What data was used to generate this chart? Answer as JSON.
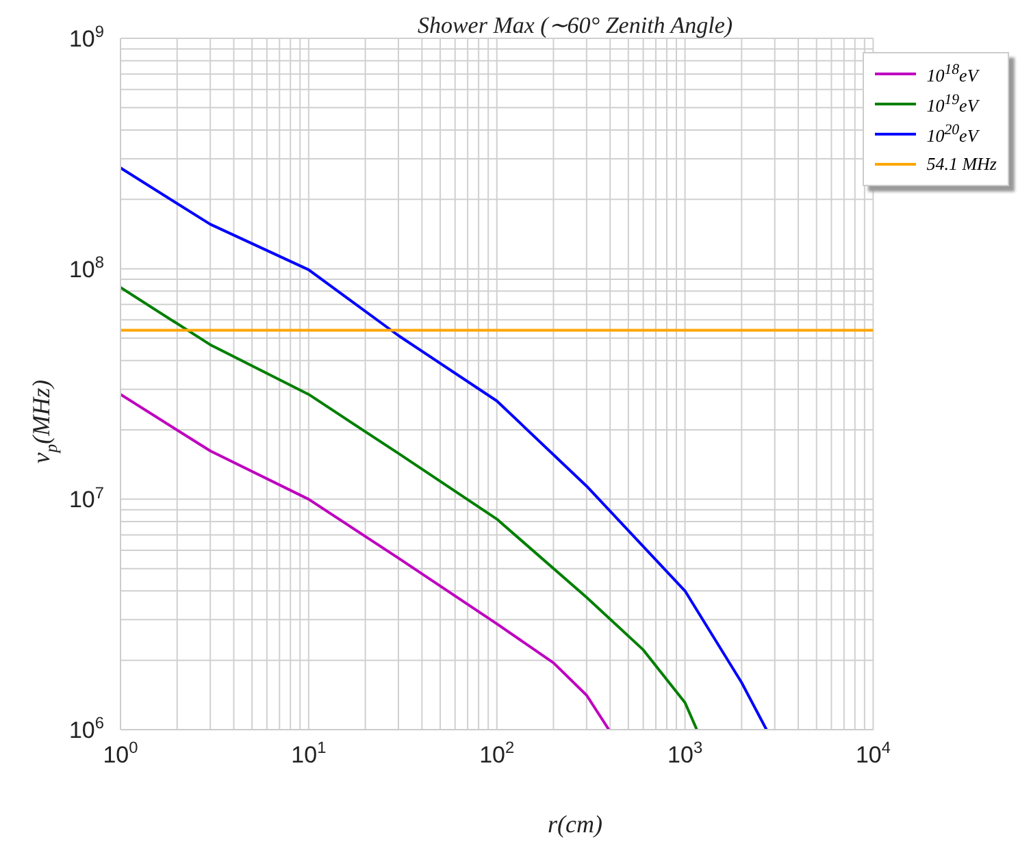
{
  "chart_data": {
    "type": "line",
    "title": "Shower  Max  (∼60°  Zenith  Angle)",
    "xlabel": "r(cm)",
    "ylabel": "ν$_{p}$(MHz)",
    "log": "xy",
    "grid": true,
    "legend": "top right",
    "marker": "none",
    "line_style": "solid",
    "xlim": [
      1,
      10000
    ],
    "ylim": [
      1000000,
      1000000000
    ],
    "xticks": [
      {
        "value": 1,
        "label": "10$^{0}$"
      },
      {
        "value": 2,
        "label": null
      },
      {
        "value": 3,
        "label": null
      },
      {
        "value": 4,
        "label": null
      },
      {
        "value": 5,
        "label": null
      },
      {
        "value": 6,
        "label": null
      },
      {
        "value": 7,
        "label": null
      },
      {
        "value": 8,
        "label": null
      },
      {
        "value": 9,
        "label": null
      },
      {
        "value": 10,
        "label": "10$^{1}$"
      },
      {
        "value": 20,
        "label": null
      },
      {
        "value": 30,
        "label": null
      },
      {
        "value": 40,
        "label": null
      },
      {
        "value": 50,
        "label": null
      },
      {
        "value": 60,
        "label": null
      },
      {
        "value": 70,
        "label": null
      },
      {
        "value": 80,
        "label": null
      },
      {
        "value": 90,
        "label": null
      },
      {
        "value": 100,
        "label": "10$^{2}$"
      },
      {
        "value": 200,
        "label": null
      },
      {
        "value": 300,
        "label": null
      },
      {
        "value": 400,
        "label": null
      },
      {
        "value": 500,
        "label": null
      },
      {
        "value": 600,
        "label": null
      },
      {
        "value": 700,
        "label": null
      },
      {
        "value": 800,
        "label": null
      },
      {
        "value": 900,
        "label": null
      },
      {
        "value": 1000,
        "label": "10$^{3}$"
      },
      {
        "value": 2000,
        "label": null
      },
      {
        "value": 3000,
        "label": null
      },
      {
        "value": 4000,
        "label": null
      },
      {
        "value": 5000,
        "label": null
      },
      {
        "value": 6000,
        "label": null
      },
      {
        "value": 7000,
        "label": null
      },
      {
        "value": 8000,
        "label": null
      },
      {
        "value": 9000,
        "label": null
      },
      {
        "value": 10000,
        "label": "10$^{4}$"
      }
    ],
    "yticks": [
      {
        "value": 1000000,
        "label": "10$^{6}$"
      },
      {
        "value": 2000000,
        "label": null
      },
      {
        "value": 3000000,
        "label": null
      },
      {
        "value": 4000000,
        "label": null
      },
      {
        "value": 5000000,
        "label": null
      },
      {
        "value": 6000000,
        "label": null
      },
      {
        "value": 7000000,
        "label": null
      },
      {
        "value": 8000000,
        "label": null
      },
      {
        "value": 9000000,
        "label": null
      },
      {
        "value": 10000000,
        "label": "10$^{7}$"
      },
      {
        "value": 20000000,
        "label": null
      },
      {
        "value": 30000000,
        "label": null
      },
      {
        "value": 40000000,
        "label": null
      },
      {
        "value": 50000000,
        "label": null
      },
      {
        "value": 60000000,
        "label": null
      },
      {
        "value": 70000000,
        "label": null
      },
      {
        "value": 80000000,
        "label": null
      },
      {
        "value": 90000000,
        "label": null
      },
      {
        "value": 100000000,
        "label": "10$^{8}$"
      },
      {
        "value": 200000000,
        "label": null
      },
      {
        "value": 300000000,
        "label": null
      },
      {
        "value": 400000000,
        "label": null
      },
      {
        "value": 500000000,
        "label": null
      },
      {
        "value": 600000000,
        "label": null
      },
      {
        "value": 700000000,
        "label": null
      },
      {
        "value": 800000000,
        "label": null
      },
      {
        "value": 900000000,
        "label": null
      },
      {
        "value": 1000000000,
        "label": "10$^{9}$"
      }
    ],
    "series": [
      {
        "name": "10$^{18}$eV",
        "color": "#bf00bf",
        "x": [
          1,
          3,
          10,
          30,
          100,
          200,
          300,
          394
        ],
        "values": [
          28500000,
          16200000,
          10000000,
          5550000,
          2880000,
          1950000,
          1410000,
          1000000
        ]
      },
      {
        "name": "10$^{19}$eV",
        "color": "#007f00",
        "x": [
          1,
          3,
          10,
          30,
          100,
          300,
          600,
          1000,
          1156
        ],
        "values": [
          83000000,
          46800000,
          28500000,
          15800000,
          8200000,
          3750000,
          2220000,
          1310000,
          1000000
        ]
      },
      {
        "name": "10$^{20}$eV",
        "color": "#0000ff",
        "x": [
          1,
          3,
          10,
          30,
          100,
          300,
          1000,
          2000,
          2710
        ],
        "values": [
          274000000,
          156000000,
          99000000,
          51300000,
          26700000,
          11400000,
          4000000,
          1600000,
          1000000
        ]
      },
      {
        "name": "54.1   MHz",
        "color": "#ffa500",
        "x": [
          1,
          10000
        ],
        "values": [
          54100000,
          54100000
        ]
      }
    ]
  }
}
